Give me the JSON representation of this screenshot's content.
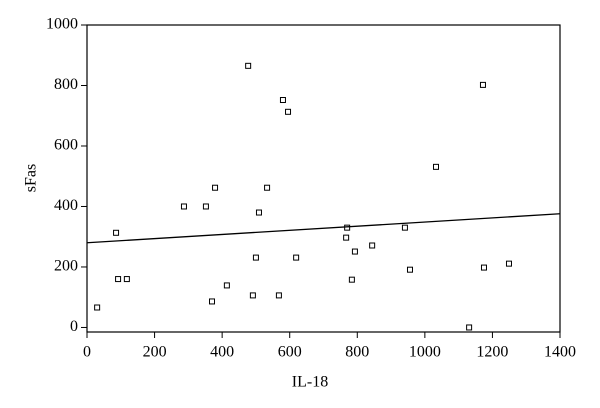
{
  "chart_data": {
    "type": "scatter",
    "x_label": "IL-18",
    "y_label": "sFas",
    "xlim": [
      0,
      1400
    ],
    "ylim": [
      -15,
      1000
    ],
    "xticks": [
      0,
      200,
      400,
      600,
      800,
      1000,
      1200,
      1400
    ],
    "yticks": [
      0,
      200,
      400,
      600,
      800,
      1000
    ],
    "color": "#000000",
    "x": [
      30,
      92,
      118,
      86,
      287,
      352,
      379,
      370,
      414,
      477,
      491,
      500,
      509,
      533,
      580,
      595,
      568,
      619,
      767,
      770,
      784,
      793,
      844,
      941,
      956,
      1033,
      1131,
      1172,
      1175,
      1249
    ],
    "values": [
      66,
      160,
      160,
      313,
      400,
      400,
      462,
      86,
      139,
      865,
      106,
      231,
      380,
      462,
      752,
      713,
      106,
      231,
      297,
      330,
      158,
      251,
      271,
      330,
      191,
      531,
      0,
      802,
      198,
      211
    ],
    "trendline": {
      "x": [
        0,
        1400
      ],
      "values": [
        280,
        376
      ]
    }
  }
}
